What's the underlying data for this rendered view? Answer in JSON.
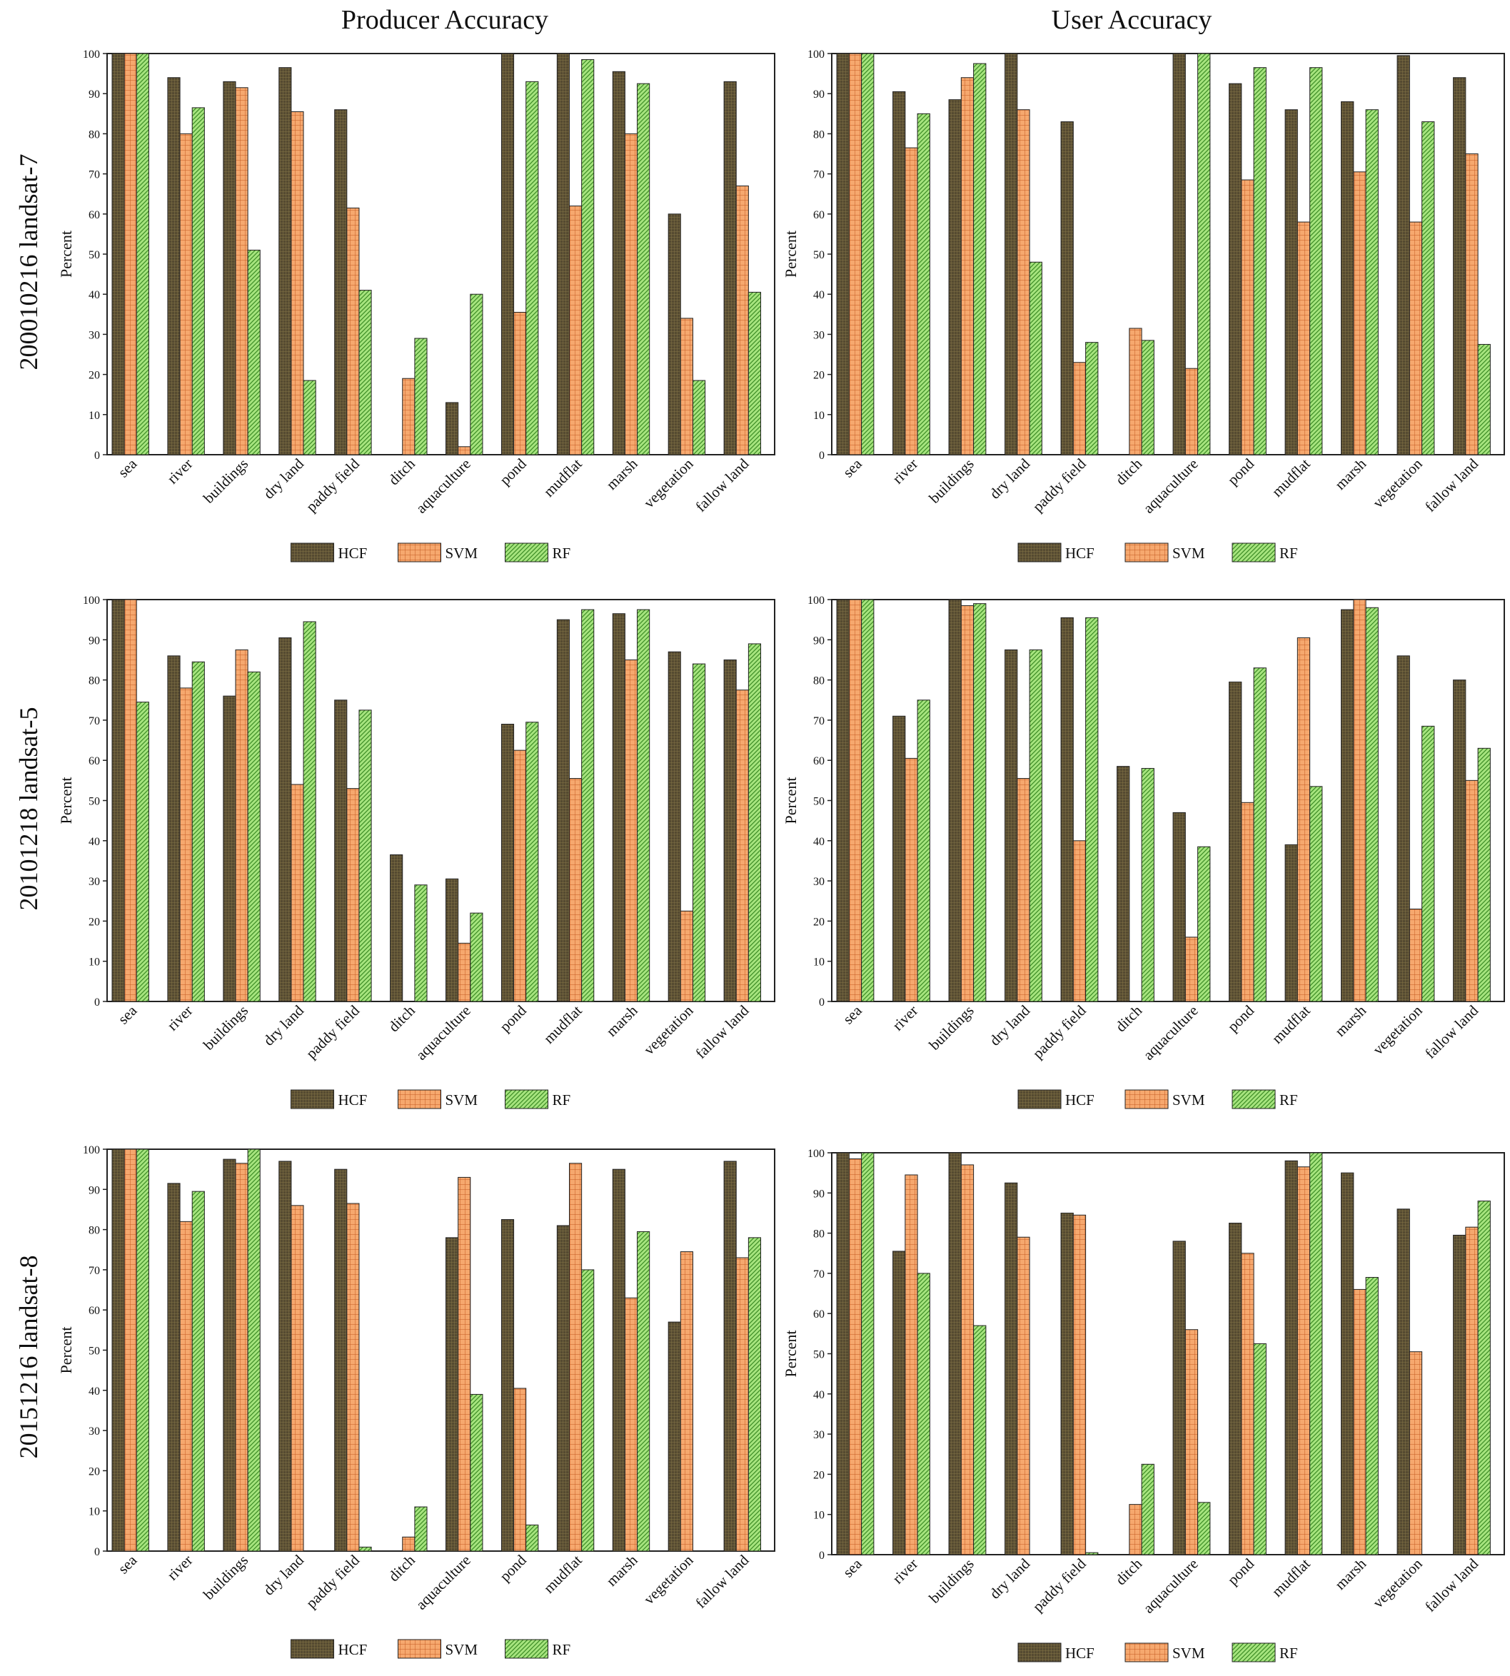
{
  "column_titles": [
    "Producer Accuracy",
    "User Accuracy"
  ],
  "row_labels": [
    "20001021​6 landsat-7",
    "20101218 landsat-5",
    "20151216 landsat-8"
  ],
  "legend": [
    "HCF",
    "SVM",
    "RF"
  ],
  "colors": {
    "HCF": "#554a31",
    "SVM": "#f4a164",
    "RF": "#9ee076",
    "HCF_grid": "#8a7a4a",
    "SVM_grid": "#c8602a",
    "RF_grid": "#3f8f28"
  },
  "chart_data": [
    {
      "type": "bar",
      "title": "Producer Accuracy",
      "row": "20001021​6 landsat-7",
      "ylabel": "Percent",
      "ylim": [
        0,
        100
      ],
      "yticks": [
        0,
        10,
        20,
        30,
        40,
        50,
        60,
        70,
        80,
        90,
        100
      ],
      "categories": [
        "sea",
        "river",
        "buildings",
        "dry land",
        "paddy field",
        "ditch",
        "aquaculture",
        "pond",
        "mudflat",
        "marsh",
        "vegetation",
        "fallow land"
      ],
      "series": [
        {
          "name": "HCF",
          "values": [
            100,
            94,
            93,
            96.5,
            86,
            0,
            13,
            100,
            100,
            95.5,
            60,
            93
          ]
        },
        {
          "name": "SVM",
          "values": [
            100,
            80,
            91.5,
            85.5,
            61.5,
            19,
            2,
            35.5,
            62,
            80,
            34,
            67
          ]
        },
        {
          "name": "RF",
          "values": [
            100,
            86.5,
            51,
            18.5,
            41,
            29,
            40,
            93,
            98.5,
            92.5,
            18.5,
            40.5
          ]
        }
      ]
    },
    {
      "type": "bar",
      "title": "User Accuracy",
      "row": "20001021​6 landsat-7",
      "ylabel": "Percent",
      "ylim": [
        0,
        100
      ],
      "yticks": [
        0,
        10,
        20,
        30,
        40,
        50,
        60,
        70,
        80,
        90,
        100
      ],
      "categories": [
        "sea",
        "river",
        "buildings",
        "dry land",
        "paddy field",
        "ditch",
        "aquaculture",
        "pond",
        "mudflat",
        "marsh",
        "vegetation",
        "fallow land"
      ],
      "series": [
        {
          "name": "HCF",
          "values": [
            100,
            90.5,
            88.5,
            100,
            83,
            0,
            100,
            92.5,
            86,
            88,
            99.5,
            94
          ]
        },
        {
          "name": "SVM",
          "values": [
            100,
            76.5,
            94,
            86,
            23,
            31.5,
            21.5,
            68.5,
            58,
            70.5,
            58,
            75
          ]
        },
        {
          "name": "RF",
          "values": [
            100,
            85,
            97.5,
            48,
            28,
            28.5,
            100,
            96.5,
            96.5,
            86,
            83,
            27.5
          ]
        }
      ]
    },
    {
      "type": "bar",
      "title": "Producer Accuracy",
      "row": "20101218 landsat-5",
      "ylabel": "Percent",
      "ylim": [
        0,
        100
      ],
      "yticks": [
        0,
        10,
        20,
        30,
        40,
        50,
        60,
        70,
        80,
        90,
        100
      ],
      "categories": [
        "sea",
        "river",
        "buildings",
        "dry land",
        "paddy field",
        "ditch",
        "aquaculture",
        "pond",
        "mudflat",
        "marsh",
        "vegetation",
        "fallow land"
      ],
      "series": [
        {
          "name": "HCF",
          "values": [
            100,
            86,
            76,
            90.5,
            75,
            36.5,
            30.5,
            69,
            95,
            96.5,
            87,
            85
          ]
        },
        {
          "name": "SVM",
          "values": [
            100,
            78,
            87.5,
            54,
            53,
            0,
            14.5,
            62.5,
            55.5,
            85,
            22.5,
            77.5
          ]
        },
        {
          "name": "RF",
          "values": [
            74.5,
            84.5,
            82,
            94.5,
            72.5,
            29,
            22,
            69.5,
            97.5,
            97.5,
            84,
            89
          ]
        }
      ]
    },
    {
      "type": "bar",
      "title": "User Accuracy",
      "row": "20101218 landsat-5",
      "ylabel": "Percent",
      "ylim": [
        0,
        100
      ],
      "yticks": [
        0,
        10,
        20,
        30,
        40,
        50,
        60,
        70,
        80,
        90,
        100
      ],
      "categories": [
        "sea",
        "river",
        "buildings",
        "dry land",
        "paddy field",
        "ditch",
        "aquaculture",
        "pond",
        "mudflat",
        "marsh",
        "vegetation",
        "fallow land"
      ],
      "series": [
        {
          "name": "HCF",
          "values": [
            100,
            71,
            100,
            87.5,
            95.5,
            58.5,
            47,
            79.5,
            39,
            97.5,
            86,
            80
          ]
        },
        {
          "name": "SVM",
          "values": [
            100,
            60.5,
            98.5,
            55.5,
            40,
            0,
            16,
            49.5,
            90.5,
            100,
            23,
            55
          ]
        },
        {
          "name": "RF",
          "values": [
            100,
            75,
            99,
            87.5,
            95.5,
            58,
            38.5,
            83,
            53.5,
            98,
            68.5,
            63
          ]
        }
      ]
    },
    {
      "type": "bar",
      "title": "Producer Accuracy",
      "row": "20151216 landsat-8",
      "ylabel": "Percent",
      "ylim": [
        0,
        100
      ],
      "yticks": [
        0,
        10,
        20,
        30,
        40,
        50,
        60,
        70,
        80,
        90,
        100
      ],
      "categories": [
        "sea",
        "river",
        "buildings",
        "dry land",
        "paddy field",
        "ditch",
        "aquaculture",
        "pond",
        "mudflat",
        "marsh",
        "vegetation",
        "fallow land"
      ],
      "series": [
        {
          "name": "HCF",
          "values": [
            100,
            91.5,
            97.5,
            97,
            95,
            0,
            78,
            82.5,
            81,
            95,
            57,
            97
          ]
        },
        {
          "name": "SVM",
          "values": [
            100,
            82,
            96.5,
            86,
            86.5,
            3.5,
            93,
            40.5,
            96.5,
            63,
            74.5,
            73
          ]
        },
        {
          "name": "RF",
          "values": [
            100,
            89.5,
            100,
            0,
            1,
            11,
            39,
            6.5,
            70,
            79.5,
            0,
            78
          ]
        }
      ]
    },
    {
      "type": "bar",
      "title": "User Accuracy",
      "row": "20151216 landsat-8",
      "ylabel": "Percent",
      "ylim": [
        0,
        100
      ],
      "yticks": [
        0,
        10,
        20,
        30,
        40,
        50,
        60,
        70,
        80,
        90,
        100
      ],
      "categories": [
        "sea",
        "river",
        "buildings",
        "dry land",
        "paddy field",
        "ditch",
        "aquaculture",
        "pond",
        "mudflat",
        "marsh",
        "vegetation",
        "fallow land"
      ],
      "series": [
        {
          "name": "HCF",
          "values": [
            100,
            75.5,
            100,
            92.5,
            85,
            0,
            78,
            82.5,
            98,
            95,
            86,
            79.5
          ]
        },
        {
          "name": "SVM",
          "values": [
            98.5,
            94.5,
            97,
            79,
            84.5,
            12.5,
            56,
            75,
            96.5,
            66,
            50.5,
            81.5
          ]
        },
        {
          "name": "RF",
          "values": [
            100,
            70,
            57,
            0,
            0.5,
            22.5,
            13,
            52.5,
            100,
            69,
            0,
            88
          ]
        }
      ]
    }
  ]
}
